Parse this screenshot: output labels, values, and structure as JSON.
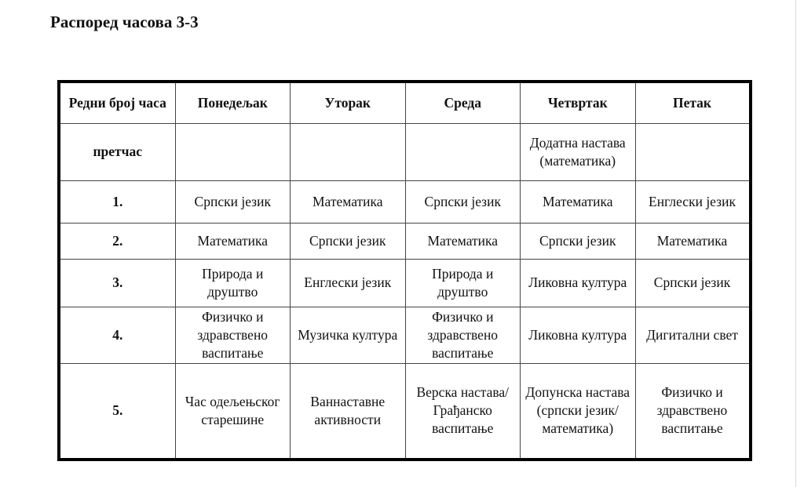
{
  "title": "Распоред часова 3-3",
  "table": {
    "headers": [
      "Редни број часа",
      "Понедељак",
      "Уторак",
      "Среда",
      "Четвртак",
      "Петак"
    ],
    "rows": [
      {
        "label": "претчас",
        "cells": [
          "",
          "",
          "",
          "Додатна настава (математика)",
          ""
        ]
      },
      {
        "label": "1.",
        "cells": [
          "Српски језик",
          "Математика",
          "Српски језик",
          "Математика",
          "Енглески језик"
        ]
      },
      {
        "label": "2.",
        "cells": [
          "Математика",
          "Српски језик",
          "Математика",
          "Српски језик",
          "Математика"
        ]
      },
      {
        "label": "3.",
        "cells": [
          "Природа и друштво",
          "Енглески језик",
          "Природа и друштво",
          "Ликовна култура",
          "Српски језик"
        ]
      },
      {
        "label": "4.",
        "cells": [
          "Физичко и здравствено васпитање",
          "Музичка култура",
          "Физичко и здравствено васпитање",
          "Ликовна култура",
          "Дигитални свет"
        ]
      },
      {
        "label": "5.",
        "cells": [
          "Час одељењског старешине",
          "Ваннаставне активности",
          "Верска настава/ Грађанско васпитање",
          "Допунска настава (српски језик/ математика)",
          "Физичко и здравствено васпитање"
        ]
      }
    ]
  }
}
